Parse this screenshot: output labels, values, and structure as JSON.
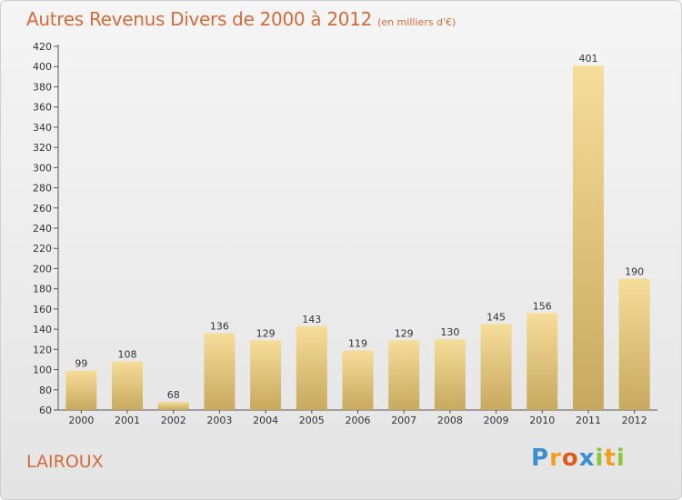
{
  "header": {
    "title": "Autres Revenus Divers de 2000 à 2012",
    "subtitle": "(en milliers d'€)"
  },
  "footer": {
    "commune": "LAIROUX",
    "logo_letters": [
      "P",
      "r",
      "o",
      "x",
      "i",
      "t",
      "i"
    ]
  },
  "colors": {
    "title": "#d46a3a",
    "bar_light": "#f6dd9a",
    "bar_dark": "#c7a95e"
  },
  "chart_data": {
    "type": "bar",
    "title": "Autres Revenus Divers de 2000 à 2012",
    "subtitle": "(en milliers d'€)",
    "xlabel": "",
    "ylabel": "",
    "ylim": [
      60,
      420
    ],
    "yticks": [
      60,
      80,
      100,
      120,
      140,
      160,
      180,
      200,
      220,
      240,
      260,
      280,
      300,
      320,
      340,
      360,
      380,
      400,
      420
    ],
    "grid": false,
    "categories": [
      "2000",
      "2001",
      "2002",
      "2003",
      "2004",
      "2005",
      "2006",
      "2007",
      "2008",
      "2009",
      "2010",
      "2011",
      "2012"
    ],
    "values": [
      99,
      108,
      68,
      136,
      129,
      143,
      119,
      129,
      130,
      145,
      156,
      401,
      190
    ]
  }
}
